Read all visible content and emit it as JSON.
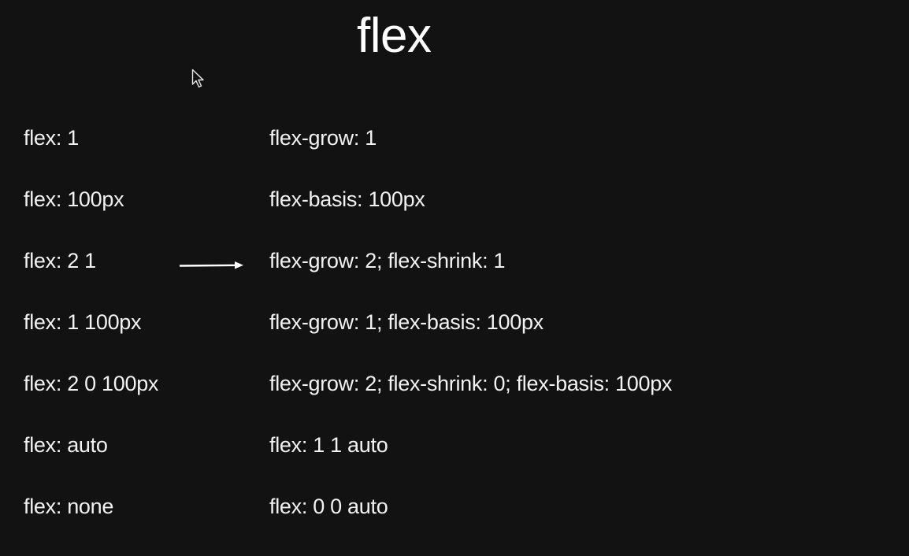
{
  "slide": {
    "title": "flex",
    "rows": [
      {
        "shorthand": "flex: 1",
        "expanded": "flex-grow: 1"
      },
      {
        "shorthand": "flex: 100px",
        "expanded": "flex-basis: 100px"
      },
      {
        "shorthand": "flex: 2 1",
        "expanded": "flex-grow: 2; flex-shrink: 1"
      },
      {
        "shorthand": "flex: 1 100px",
        "expanded": "flex-grow: 1; flex-basis: 100px"
      },
      {
        "shorthand": "flex: 2 0 100px",
        "expanded": "flex-grow: 2; flex-shrink: 0; flex-basis: 100px"
      },
      {
        "shorthand": "flex: auto",
        "expanded": "flex: 1 1 auto"
      },
      {
        "shorthand": "flex: none",
        "expanded": "flex: 0 0 auto"
      }
    ]
  },
  "icons": {
    "pointer": "mouse-pointer-icon",
    "arrow": "right-arrow-icon"
  },
  "colors": {
    "background": "#121212",
    "text": "#f2f2f2"
  }
}
